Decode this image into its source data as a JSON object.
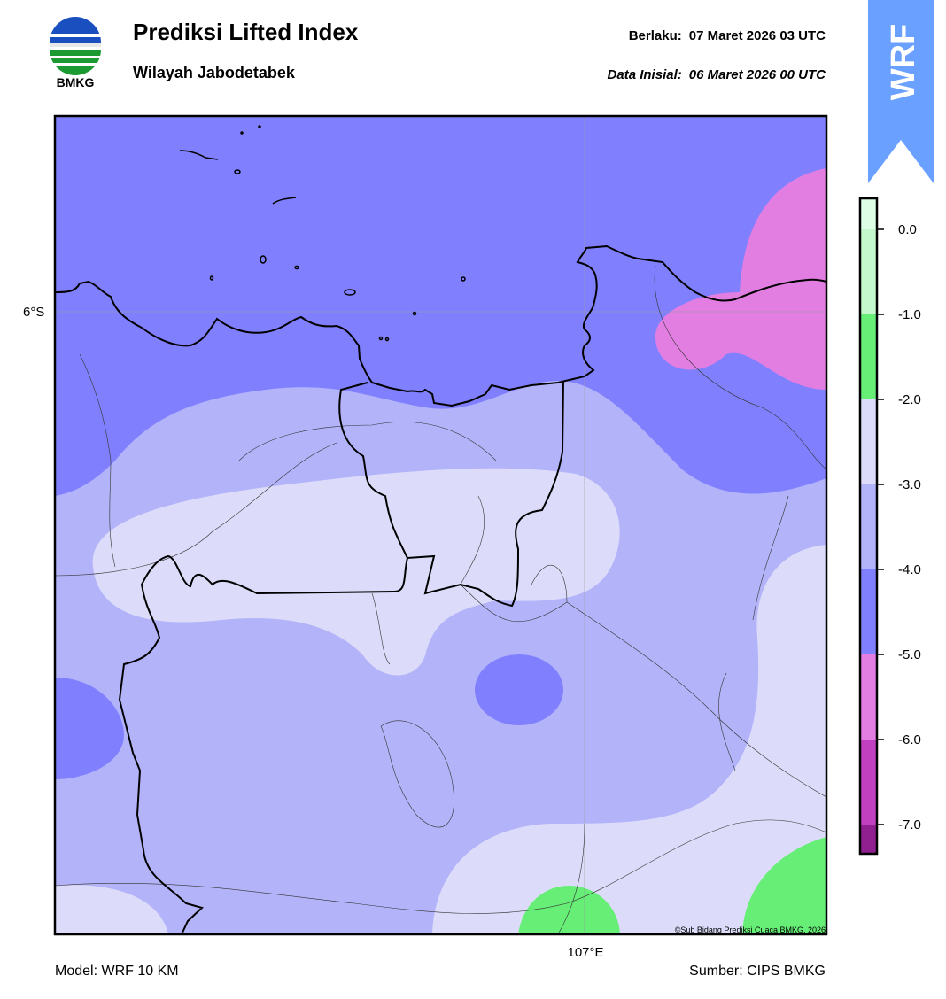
{
  "header": {
    "logo_text": "BMKG",
    "title": "Prediksi Lifted Index",
    "subtitle": "Wilayah Jabodetabek",
    "valid_label": "Berlaku:",
    "valid_time": "07 Maret 2026 03 UTC",
    "init_label": "Data Inisial:",
    "init_time": "06 Maret 2026 00 UTC",
    "badge": "WRF"
  },
  "map": {
    "lat_label": "6°S",
    "lon_label": "107°E",
    "credit": "©Sub Bidang Prediksi Cuaca BMKG, 2026"
  },
  "colorbar": {
    "ticks": [
      "0.0",
      "-1.0",
      "-2.0",
      "-3.0",
      "-4.0",
      "-5.0",
      "-6.0",
      "-7.0"
    ],
    "colors": [
      "#ddfde5",
      "#c4f7cc",
      "#66ee77",
      "#dcdcfa",
      "#b3b3fa",
      "#8080ff",
      "#e27ee2",
      "#c040c0",
      "#902090"
    ]
  },
  "footer": {
    "model": "Model: WRF 10 KM",
    "source": "Sumber: CIPS BMKG"
  }
}
